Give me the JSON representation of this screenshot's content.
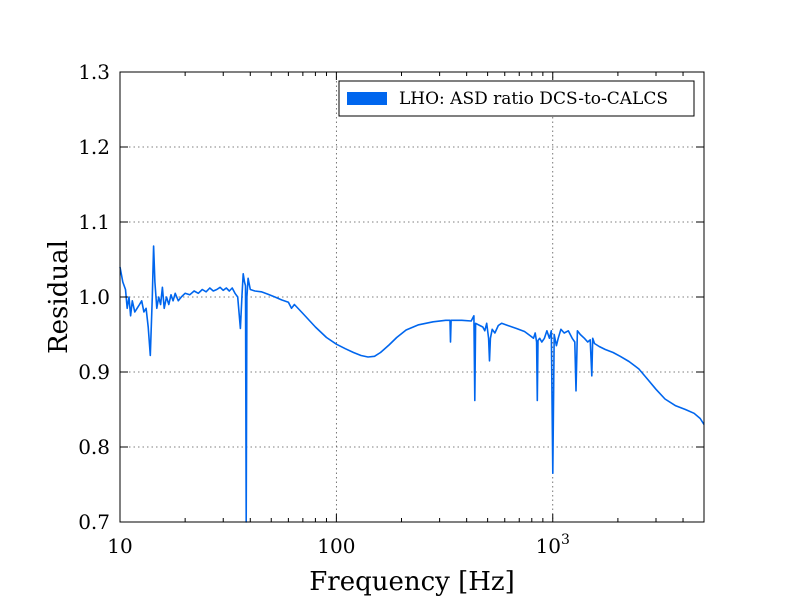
{
  "chart_data": {
    "type": "line",
    "title": "",
    "xlabel": "Frequency [Hz]",
    "ylabel": "Residual",
    "xscale": "log",
    "xlim": [
      10,
      5000
    ],
    "ylim": [
      0.7,
      1.3
    ],
    "x_ticks": [
      {
        "value": 10,
        "label": "10"
      },
      {
        "value": 100,
        "label": "100"
      },
      {
        "value": 1000,
        "label": "10",
        "sup": "3"
      }
    ],
    "y_ticks": [
      {
        "value": 0.7,
        "label": "0.7"
      },
      {
        "value": 0.8,
        "label": "0.8"
      },
      {
        "value": 0.9,
        "label": "0.9"
      },
      {
        "value": 1.0,
        "label": "1.0"
      },
      {
        "value": 1.1,
        "label": "1.1"
      },
      {
        "value": 1.2,
        "label": "1.2"
      },
      {
        "value": 1.3,
        "label": "1.3"
      }
    ],
    "grid": true,
    "legend": {
      "position": "top-right",
      "label": "LHO: ASD ratio DCS-to-CALCS"
    },
    "series": [
      {
        "name": "LHO: ASD ratio DCS-to-CALCS",
        "color": "#0066ee",
        "points": [
          [
            10.0,
            1.04
          ],
          [
            10.3,
            1.02
          ],
          [
            10.6,
            1.01
          ],
          [
            10.8,
            0.985
          ],
          [
            11.0,
            1.0
          ],
          [
            11.2,
            0.975
          ],
          [
            11.4,
            0.995
          ],
          [
            11.7,
            0.98
          ],
          [
            12.0,
            0.985
          ],
          [
            12.3,
            0.99
          ],
          [
            12.6,
            0.995
          ],
          [
            12.9,
            0.98
          ],
          [
            13.2,
            0.985
          ],
          [
            13.5,
            0.96
          ],
          [
            13.8,
            0.922
          ],
          [
            14.1,
            1.0
          ],
          [
            14.3,
            1.068
          ],
          [
            14.5,
            1.02
          ],
          [
            14.8,
            0.985
          ],
          [
            15.1,
            1.0
          ],
          [
            15.4,
            0.99
          ],
          [
            15.7,
            1.013
          ],
          [
            16.0,
            0.985
          ],
          [
            16.4,
            1.0
          ],
          [
            16.8,
            0.99
          ],
          [
            17.2,
            1.003
          ],
          [
            17.6,
            0.995
          ],
          [
            18.0,
            1.005
          ],
          [
            18.6,
            0.995
          ],
          [
            19.2,
            1.0
          ],
          [
            20.0,
            1.005
          ],
          [
            21.0,
            1.003
          ],
          [
            22.0,
            1.008
          ],
          [
            23.0,
            1.005
          ],
          [
            24.0,
            1.01
          ],
          [
            25.0,
            1.007
          ],
          [
            26.0,
            1.012
          ],
          [
            27.0,
            1.008
          ],
          [
            28.0,
            1.01
          ],
          [
            29.0,
            1.013
          ],
          [
            30.0,
            1.009
          ],
          [
            31.0,
            1.012
          ],
          [
            32.0,
            1.008
          ],
          [
            33.0,
            1.012
          ],
          [
            34.0,
            1.005
          ],
          [
            35.0,
            1.0
          ],
          [
            36.0,
            0.958
          ],
          [
            36.6,
            1.0
          ],
          [
            37.1,
            1.031
          ],
          [
            37.6,
            1.02
          ],
          [
            38.0,
            1.015
          ],
          [
            38.3,
            0.7
          ],
          [
            38.6,
            1.0
          ],
          [
            39.1,
            1.025
          ],
          [
            40.0,
            1.01
          ],
          [
            42.0,
            1.008
          ],
          [
            45.0,
            1.007
          ],
          [
            48.0,
            1.004
          ],
          [
            52.0,
            1.0
          ],
          [
            56.0,
            0.996
          ],
          [
            60.0,
            0.993
          ],
          [
            62.0,
            0.985
          ],
          [
            64.0,
            0.99
          ],
          [
            70.0,
            0.978
          ],
          [
            80.0,
            0.96
          ],
          [
            90.0,
            0.946
          ],
          [
            100.0,
            0.937
          ],
          [
            110.0,
            0.931
          ],
          [
            120.0,
            0.926
          ],
          [
            130.0,
            0.922
          ],
          [
            140.0,
            0.92
          ],
          [
            150.0,
            0.921
          ],
          [
            160.0,
            0.926
          ],
          [
            175.0,
            0.936
          ],
          [
            190.0,
            0.946
          ],
          [
            210.0,
            0.956
          ],
          [
            240.0,
            0.963
          ],
          [
            280.0,
            0.967
          ],
          [
            320.0,
            0.969
          ],
          [
            335.0,
            0.969
          ],
          [
            337.0,
            0.94
          ],
          [
            339.0,
            0.969
          ],
          [
            380.0,
            0.969
          ],
          [
            420.0,
            0.968
          ],
          [
            432.0,
            0.975
          ],
          [
            436.0,
            0.862
          ],
          [
            440.0,
            0.965
          ],
          [
            460.0,
            0.962
          ],
          [
            475.0,
            0.96
          ],
          [
            485.0,
            0.955
          ],
          [
            495.0,
            0.965
          ],
          [
            505.0,
            0.945
          ],
          [
            510.0,
            0.915
          ],
          [
            515.0,
            0.945
          ],
          [
            525.0,
            0.957
          ],
          [
            540.0,
            0.952
          ],
          [
            560.0,
            0.962
          ],
          [
            580.0,
            0.965
          ],
          [
            620.0,
            0.962
          ],
          [
            680.0,
            0.958
          ],
          [
            740.0,
            0.954
          ],
          [
            790.0,
            0.948
          ],
          [
            815.0,
            0.945
          ],
          [
            830.0,
            0.952
          ],
          [
            842.0,
            0.94
          ],
          [
            848.0,
            0.862
          ],
          [
            855.0,
            0.942
          ],
          [
            870.0,
            0.945
          ],
          [
            890.0,
            0.94
          ],
          [
            915.0,
            0.945
          ],
          [
            940.0,
            0.955
          ],
          [
            965.0,
            0.945
          ],
          [
            985.0,
            0.955
          ],
          [
            1000.0,
            0.765
          ],
          [
            1015.0,
            0.95
          ],
          [
            1040.0,
            0.935
          ],
          [
            1060.0,
            0.945
          ],
          [
            1090.0,
            0.957
          ],
          [
            1130.0,
            0.952
          ],
          [
            1180.0,
            0.955
          ],
          [
            1230.0,
            0.945
          ],
          [
            1265.0,
            0.94
          ],
          [
            1280.0,
            0.875
          ],
          [
            1300.0,
            0.955
          ],
          [
            1340.0,
            0.95
          ],
          [
            1400.0,
            0.945
          ],
          [
            1450.0,
            0.94
          ],
          [
            1490.0,
            0.943
          ],
          [
            1515.0,
            0.895
          ],
          [
            1530.0,
            0.945
          ],
          [
            1560.0,
            0.938
          ],
          [
            1640.0,
            0.934
          ],
          [
            1750.0,
            0.93
          ],
          [
            1900.0,
            0.926
          ],
          [
            2050.0,
            0.921
          ],
          [
            2250.0,
            0.914
          ],
          [
            2500.0,
            0.904
          ],
          [
            2750.0,
            0.89
          ],
          [
            3000.0,
            0.877
          ],
          [
            3300.0,
            0.864
          ],
          [
            3700.0,
            0.855
          ],
          [
            4100.0,
            0.85
          ],
          [
            4500.0,
            0.845
          ],
          [
            4800.0,
            0.838
          ],
          [
            5000.0,
            0.83
          ]
        ]
      }
    ]
  }
}
